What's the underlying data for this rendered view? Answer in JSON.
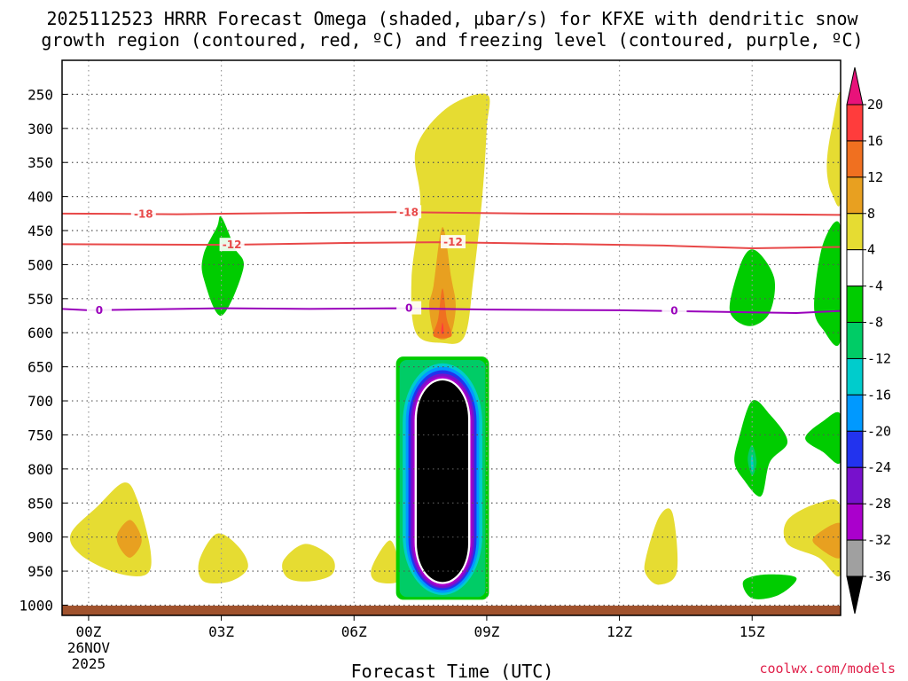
{
  "chart_data": {
    "type": "heatmap",
    "title_line1": "2025112523 HRRR Forecast Omega (shaded, μbar/s) for KFXE with dendritic snow",
    "title_line2": "growth region (contoured, red, ºC) and freezing level (contoured, purple, ºC)",
    "xlabel": "Forecast Time (UTC)",
    "x_ticks": [
      "00Z",
      "03Z",
      "06Z",
      "09Z",
      "12Z",
      "15Z"
    ],
    "x_tick_hours": [
      0,
      3,
      6,
      9,
      12,
      15
    ],
    "x_date_line1": "26NOV",
    "x_date_line2": "2025",
    "xlim": [
      -0.6,
      17
    ],
    "y_ticks": [
      "250",
      "300",
      "350",
      "400",
      "450",
      "500",
      "550",
      "600",
      "650",
      "700",
      "750",
      "800",
      "850",
      "900",
      "950",
      "1000"
    ],
    "y_tick_values": [
      250,
      300,
      350,
      400,
      450,
      500,
      550,
      600,
      650,
      700,
      750,
      800,
      850,
      900,
      950,
      1000
    ],
    "ylim": [
      200,
      1015
    ],
    "colorbar": {
      "labels": [
        "20",
        "16",
        "12",
        "8",
        "4",
        "-4",
        "-8",
        "-12",
        "-16",
        "-20",
        "-24",
        "-28",
        "-32",
        "-36"
      ],
      "colors": [
        "#ff3c3c",
        "#f07020",
        "#e8a020",
        "#e6dc32",
        "#ffffff",
        "#00cc00",
        "#00cc66",
        "#00cccc",
        "#0099ff",
        "#2233ee",
        "#7711cc",
        "#aa00cc",
        "#a0a0a0"
      ],
      "top_color": "#e8127a",
      "bottom_color": "#000000"
    },
    "contours": [
      {
        "label": "-18",
        "color": "#e84848",
        "label_hours": [
          1.0,
          7.0
        ],
        "points": [
          [
            -0.6,
            425
          ],
          [
            2,
            426
          ],
          [
            5,
            424
          ],
          [
            7,
            423
          ],
          [
            10,
            425
          ],
          [
            13,
            426
          ],
          [
            15,
            426
          ],
          [
            17,
            427
          ]
        ]
      },
      {
        "label": "-12",
        "color": "#e84848",
        "label_hours": [
          3.0,
          8.0
        ],
        "points": [
          [
            -0.6,
            470
          ],
          [
            3,
            471
          ],
          [
            6,
            468
          ],
          [
            8,
            467
          ],
          [
            10,
            469
          ],
          [
            13,
            472
          ],
          [
            15,
            476
          ],
          [
            17,
            474
          ]
        ]
      },
      {
        "label": "0",
        "color": "#9900bb",
        "label_hours": [
          0.0,
          7.0,
          13.0
        ],
        "points": [
          [
            -0.6,
            565
          ],
          [
            0,
            567
          ],
          [
            3,
            564
          ],
          [
            5,
            565
          ],
          [
            7,
            564
          ],
          [
            9,
            566
          ],
          [
            12,
            567
          ],
          [
            15,
            570
          ],
          [
            16,
            571
          ],
          [
            17,
            568
          ]
        ]
      }
    ],
    "shaded_regions": [
      {
        "class": "yellow",
        "value": 6,
        "points": [
          [
            7.5,
            410
          ],
          [
            7.4,
            330
          ],
          [
            8.1,
            270
          ],
          [
            9.0,
            250
          ],
          [
            9.0,
            300
          ],
          [
            8.9,
            400
          ],
          [
            8.7,
            520
          ],
          [
            8.5,
            605
          ],
          [
            8.0,
            615
          ],
          [
            7.4,
            600
          ],
          [
            7.3,
            520
          ]
        ]
      },
      {
        "class": "orange",
        "value": 10,
        "points": [
          [
            7.8,
            530
          ],
          [
            8.0,
            445
          ],
          [
            8.2,
            520
          ],
          [
            8.3,
            560
          ],
          [
            8.2,
            600
          ],
          [
            8.0,
            610
          ],
          [
            7.8,
            600
          ],
          [
            7.7,
            560
          ]
        ]
      },
      {
        "class": "dark-orange",
        "value": 14,
        "points": [
          [
            7.9,
            580
          ],
          [
            8.0,
            535
          ],
          [
            8.1,
            580
          ],
          [
            8.2,
            605
          ],
          [
            7.8,
            605
          ]
        ]
      },
      {
        "class": "red",
        "value": 18,
        "points": [
          [
            7.97,
            600
          ],
          [
            8.0,
            585
          ],
          [
            8.03,
            600
          ]
        ]
      },
      {
        "class": "yellow",
        "value": 6,
        "points": [
          [
            -0.4,
            895
          ],
          [
            0.2,
            855
          ],
          [
            0.8,
            820
          ],
          [
            1.1,
            845
          ],
          [
            1.4,
            920
          ],
          [
            1.3,
            955
          ],
          [
            0.6,
            952
          ],
          [
            -0.2,
            925
          ]
        ]
      },
      {
        "class": "orange",
        "value": 10,
        "points": [
          [
            0.65,
            895
          ],
          [
            0.95,
            875
          ],
          [
            1.2,
            905
          ],
          [
            0.95,
            930
          ],
          [
            0.7,
            915
          ]
        ]
      },
      {
        "class": "yellow",
        "value": 6,
        "points": [
          [
            2.5,
            935
          ],
          [
            2.9,
            895
          ],
          [
            3.4,
            915
          ],
          [
            3.6,
            945
          ],
          [
            3.2,
            965
          ],
          [
            2.6,
            965
          ]
        ]
      },
      {
        "class": "yellow",
        "value": 6,
        "points": [
          [
            4.4,
            935
          ],
          [
            4.9,
            910
          ],
          [
            5.5,
            930
          ],
          [
            5.5,
            955
          ],
          [
            5.0,
            965
          ],
          [
            4.5,
            960
          ]
        ]
      },
      {
        "class": "yellow",
        "value": 6,
        "points": [
          [
            6.4,
            945
          ],
          [
            6.8,
            905
          ],
          [
            7.0,
            935
          ],
          [
            7.0,
            965
          ],
          [
            6.5,
            965
          ]
        ]
      },
      {
        "class": "yellow",
        "value": 6,
        "points": [
          [
            12.6,
            930
          ],
          [
            12.9,
            870
          ],
          [
            13.2,
            865
          ],
          [
            13.3,
            950
          ],
          [
            12.9,
            970
          ],
          [
            12.6,
            955
          ]
        ]
      },
      {
        "class": "yellow",
        "value": 6,
        "points": [
          [
            15.8,
            875
          ],
          [
            16.5,
            850
          ],
          [
            17.0,
            855
          ],
          [
            17.0,
            955
          ],
          [
            16.5,
            930
          ],
          [
            15.8,
            910
          ]
        ]
      },
      {
        "class": "orange",
        "value": 10,
        "points": [
          [
            16.4,
            900
          ],
          [
            17.0,
            880
          ],
          [
            17.0,
            930
          ],
          [
            16.5,
            915
          ]
        ]
      },
      {
        "class": "yellow",
        "value": 6,
        "points": [
          [
            16.7,
            340
          ],
          [
            16.8,
            300
          ],
          [
            17.0,
            250
          ],
          [
            17.0,
            405
          ],
          [
            16.8,
            395
          ],
          [
            16.7,
            370
          ]
        ]
      },
      {
        "class": "green",
        "value": -6,
        "points": [
          [
            2.6,
            485
          ],
          [
            2.9,
            445
          ],
          [
            3.0,
            430
          ],
          [
            3.3,
            475
          ],
          [
            3.5,
            505
          ],
          [
            3.0,
            575
          ],
          [
            2.6,
            520
          ]
        ]
      },
      {
        "class": "green",
        "value": -6,
        "points": [
          [
            14.5,
            555
          ],
          [
            14.8,
            490
          ],
          [
            15.1,
            480
          ],
          [
            15.5,
            520
          ],
          [
            15.4,
            570
          ],
          [
            15.0,
            590
          ],
          [
            14.6,
            580
          ]
        ]
      },
      {
        "class": "green",
        "value": -6,
        "points": [
          [
            16.4,
            560
          ],
          [
            16.6,
            470
          ],
          [
            17.0,
            445
          ],
          [
            17.0,
            610
          ],
          [
            16.6,
            595
          ]
        ]
      },
      {
        "class": "green",
        "value": -6,
        "points": [
          [
            14.7,
            755
          ],
          [
            15.0,
            700
          ],
          [
            15.4,
            720
          ],
          [
            15.8,
            760
          ],
          [
            15.4,
            790
          ],
          [
            15.2,
            840
          ],
          [
            14.8,
            815
          ],
          [
            14.6,
            790
          ]
        ]
      },
      {
        "class": "green",
        "value": -6,
        "points": [
          [
            16.2,
            755
          ],
          [
            16.6,
            730
          ],
          [
            17.0,
            720
          ],
          [
            17.0,
            790
          ],
          [
            16.6,
            775
          ]
        ]
      },
      {
        "class": "green",
        "value": -6,
        "points": [
          [
            14.8,
            965
          ],
          [
            15.3,
            955
          ],
          [
            16.0,
            960
          ],
          [
            15.6,
            985
          ],
          [
            15.0,
            990
          ]
        ]
      },
      {
        "class": "teal",
        "value": -10,
        "points": [
          [
            14.9,
            785
          ],
          [
            15.0,
            765
          ],
          [
            15.1,
            790
          ],
          [
            15.0,
            810
          ]
        ]
      },
      {
        "class": "dark-teal",
        "value": -14,
        "points": [
          [
            14.97,
            790
          ],
          [
            15.0,
            778
          ],
          [
            15.03,
            795
          ],
          [
            15.0,
            805
          ]
        ]
      }
    ],
    "capsule_rings": [
      {
        "class": "green",
        "value": -6,
        "x_range": [
          6.95,
          9.05
        ],
        "y_range": [
          635,
          992
        ],
        "color": "#00cc00"
      },
      {
        "class": "teal",
        "value": -10,
        "x_range": [
          7.03,
          8.97
        ],
        "y_range": [
          640,
          988
        ],
        "color": "#00cc66"
      },
      {
        "class": "cyan",
        "value": -14,
        "x_range": [
          7.1,
          8.9
        ],
        "y_range": [
          645,
          985
        ],
        "color": "#00cccc"
      },
      {
        "class": "blue",
        "value": -18,
        "x_range": [
          7.17,
          8.83
        ],
        "y_range": [
          650,
          982
        ],
        "color": "#0099ff"
      },
      {
        "class": "dark-blue",
        "value": -22,
        "x_range": [
          7.23,
          8.77
        ],
        "y_range": [
          655,
          978
        ],
        "color": "#2233ee"
      },
      {
        "class": "violet",
        "value": -26,
        "x_range": [
          7.28,
          8.72
        ],
        "y_range": [
          660,
          975
        ],
        "color": "#7711cc"
      },
      {
        "class": "purple",
        "value": -30,
        "x_range": [
          7.33,
          8.67
        ],
        "y_range": [
          664,
          972
        ],
        "color": "#aa00cc"
      },
      {
        "class": "white",
        "value": -30,
        "x_range": [
          7.37,
          8.63
        ],
        "y_range": [
          667,
          969
        ],
        "color": "#ffffff"
      },
      {
        "class": "black",
        "value": -40,
        "x_range": [
          7.42,
          8.58
        ],
        "y_range": [
          670,
          966
        ],
        "color": "#000000"
      }
    ],
    "terrain_color": "#a0522d"
  },
  "credit": "coolwx.com/models"
}
